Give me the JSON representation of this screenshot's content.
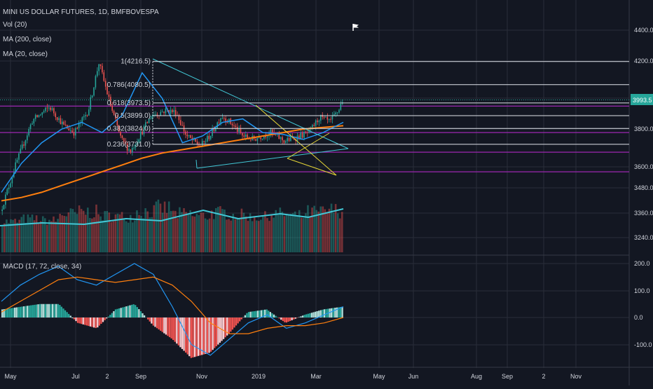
{
  "header": {
    "symbol_title": "MINI US DOLLAR FUTURES, 1D, BMFBOVESPA",
    "vol_label": "Vol (20)",
    "ma200_label": "MA (200, close)",
    "ma20_label": "MA (20, close)",
    "macd_label": "MACD (17, 72, close, 34)"
  },
  "colors": {
    "background": "#131722",
    "grid": "#2a2e39",
    "text": "#d1d4dc",
    "up": "#26a69a",
    "down": "#ef5350",
    "ma200": "#ff7f0e",
    "ma20": "#2196f3",
    "purple": "#9c27b0",
    "trend": "#42c8d6",
    "yellow": "#e5d637",
    "last_price_badge": "#26a69a"
  },
  "chart_data": [
    {
      "type": "candlestick",
      "title": "MINI US DOLLAR FUTURES, 1D, BMFBOVESPA",
      "x_ticks": [
        "May",
        "Jul",
        "2",
        "Sep",
        "Nov",
        "2019",
        "Mar",
        "May",
        "Jun",
        "Aug",
        "Sep",
        "2",
        "Nov"
      ],
      "y_ticks": [
        "4400.0",
        "4200.0",
        "3800.0",
        "3600.0",
        "3480.0",
        "3360.0",
        "3240.0"
      ],
      "last_price": "3993.5",
      "ylim": [
        3300,
        4500
      ],
      "fibonacci": [
        {
          "level": "1",
          "label": "1(4216.5)",
          "value": 4216.5
        },
        {
          "level": "0.786",
          "label": "0.786(4080.5)",
          "value": 4080.5
        },
        {
          "level": "0.618",
          "label": "0.618(3973.5)",
          "value": 3973.5
        },
        {
          "level": "0.5",
          "label": "0.5(3899.0)",
          "value": 3899.0
        },
        {
          "level": "0.382",
          "label": "0.382(3824.0)",
          "value": 3824.0
        },
        {
          "level": "0.236",
          "label": "0.236(3731.0)",
          "value": 3731.0
        }
      ],
      "horizontal_levels": [
        3955,
        3800,
        3685,
        3570
      ],
      "series": [
        {
          "name": "MA (200, close)",
          "values": [
            3400,
            3420,
            3450,
            3490,
            3530,
            3570,
            3610,
            3650,
            3680,
            3700,
            3720,
            3740,
            3760,
            3780,
            3800,
            3820,
            3830,
            3840
          ]
        },
        {
          "name": "MA (20, close)",
          "values": [
            3450,
            3620,
            3740,
            3820,
            3860,
            3800,
            3900,
            4150,
            4000,
            3740,
            3780,
            3860,
            3880,
            3800,
            3790,
            3760,
            3800,
            3860
          ]
        }
      ]
    },
    {
      "type": "bar",
      "title": "Vol (20)",
      "values": [
        0.35,
        0.42,
        0.38,
        0.55,
        0.6,
        0.5,
        0.48,
        0.62,
        0.7,
        0.55,
        0.5,
        0.58,
        0.52,
        0.47,
        0.55,
        0.5,
        0.6,
        0.65
      ]
    },
    {
      "type": "line",
      "title": "MACD (17, 72, close, 34)",
      "y_ticks": [
        "200.0",
        "100.0",
        "0.0",
        "-100.0"
      ],
      "ylim": [
        -150,
        220
      ],
      "series": [
        {
          "name": "MACD",
          "values": [
            60,
            120,
            160,
            190,
            140,
            120,
            160,
            200,
            160,
            40,
            -100,
            -140,
            -80,
            -20,
            10,
            -40,
            -20,
            10,
            40
          ]
        },
        {
          "name": "Signal",
          "values": [
            20,
            60,
            100,
            140,
            150,
            140,
            130,
            140,
            150,
            120,
            60,
            -20,
            -60,
            -60,
            -40,
            -30,
            -30,
            -20,
            0
          ]
        }
      ],
      "histogram": [
        30,
        40,
        50,
        50,
        -20,
        -40,
        30,
        50,
        -30,
        -80,
        -150,
        -130,
        -60,
        20,
        30,
        -20,
        10,
        30,
        40
      ]
    }
  ]
}
